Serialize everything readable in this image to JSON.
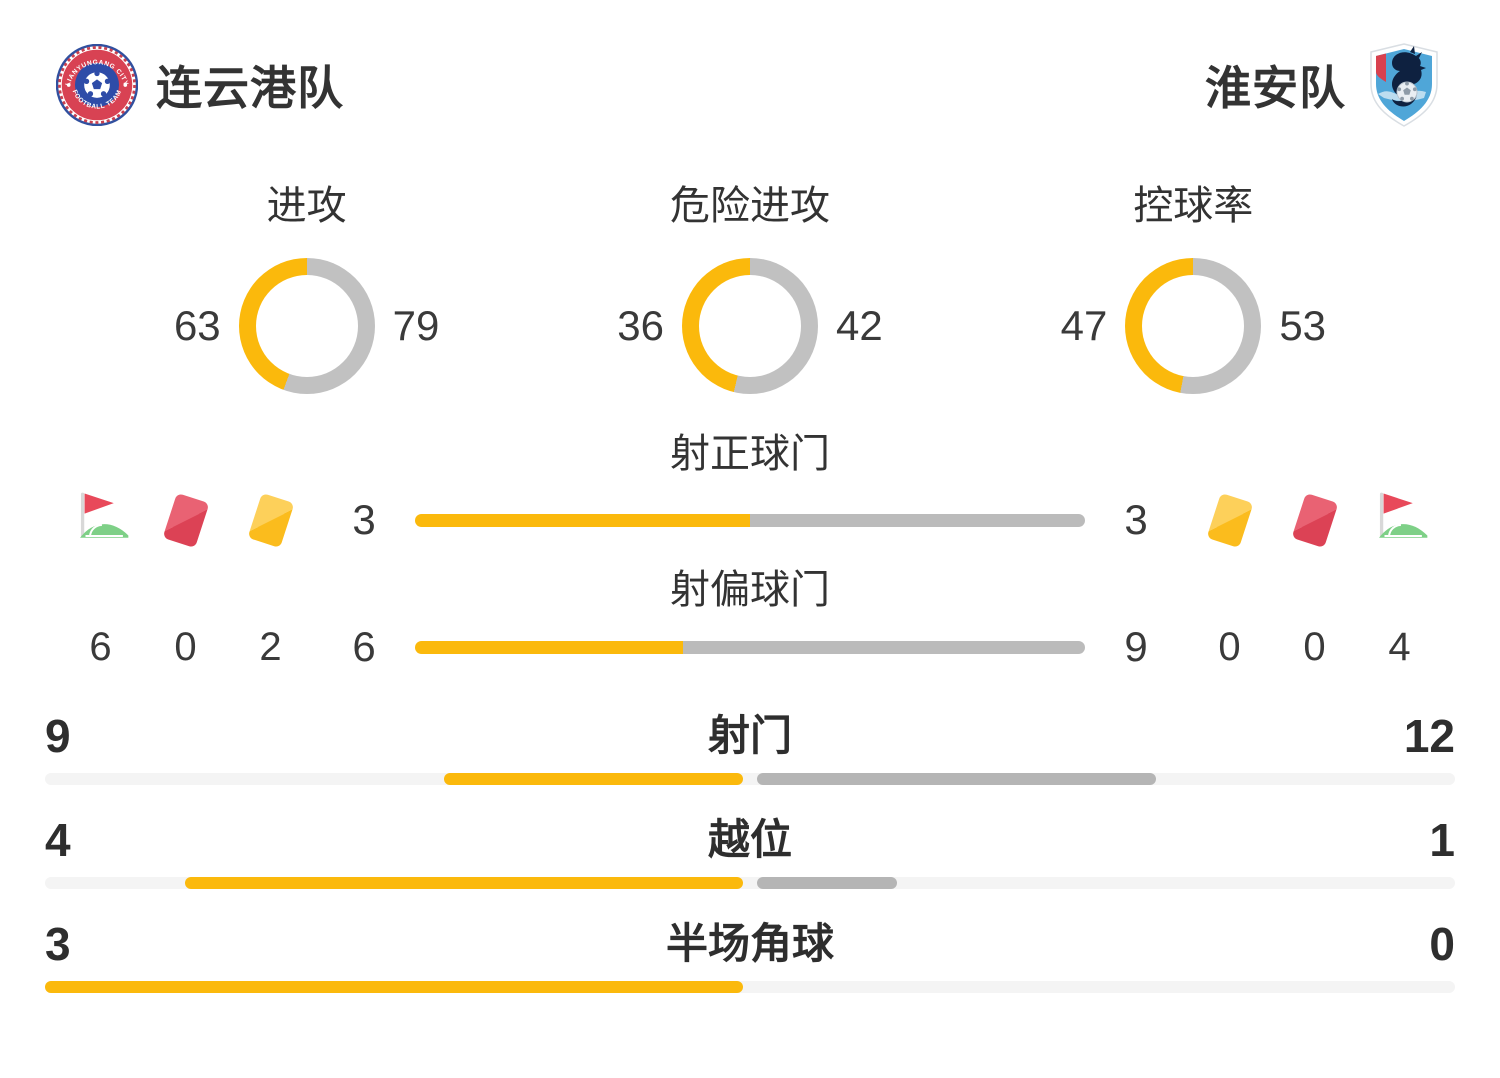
{
  "header": {
    "home": {
      "name": "连云港队",
      "badge_text_top": "LIANYUNGANG CITY",
      "badge_text_bottom": "FOOTBALL TEAM"
    },
    "away": {
      "name": "淮安队"
    }
  },
  "colors": {
    "accent": "#FBB90C",
    "donut_gray": "#C1C1C1",
    "mid_gray": "#BBBBBB",
    "track": "#F4F4F4",
    "away_segment": "#B5B5B5",
    "text": "#333333",
    "bold_text": "#2E2E2E",
    "red_card": "#DC4255",
    "yellow_card": "#FBBC1D",
    "flag_red": "#E8495A",
    "flag_green": "#7ED087"
  },
  "chart_data": {
    "type": "comparison-stats",
    "teams": [
      "连云港队",
      "淮安队"
    ],
    "home_color": "#FBB90C",
    "away_color": "#C1C1C1",
    "donuts": [
      {
        "label": "进攻",
        "home": 63,
        "away": 79
      },
      {
        "label": "危险进攻",
        "home": 36,
        "away": 42
      },
      {
        "label": "控球率",
        "home": 47,
        "away": 53
      }
    ],
    "center_bars": [
      {
        "label": "射正球门",
        "home": 3,
        "away": 3
      },
      {
        "label": "射偏球门",
        "home": 6,
        "away": 9
      }
    ],
    "icon_stats": {
      "home": [
        {
          "icon": "corner-flag",
          "value": 6
        },
        {
          "icon": "red-card",
          "value": 0
        },
        {
          "icon": "yellow-card",
          "value": 2
        }
      ],
      "away": [
        {
          "icon": "yellow-card",
          "value": 0
        },
        {
          "icon": "red-card",
          "value": 0
        },
        {
          "icon": "corner-flag",
          "value": 4
        }
      ]
    },
    "full_bars": [
      {
        "label": "射门",
        "home": 9,
        "away": 12
      },
      {
        "label": "越位",
        "home": 4,
        "away": 1
      },
      {
        "label": "半场角球",
        "home": 3,
        "away": 0
      }
    ]
  }
}
